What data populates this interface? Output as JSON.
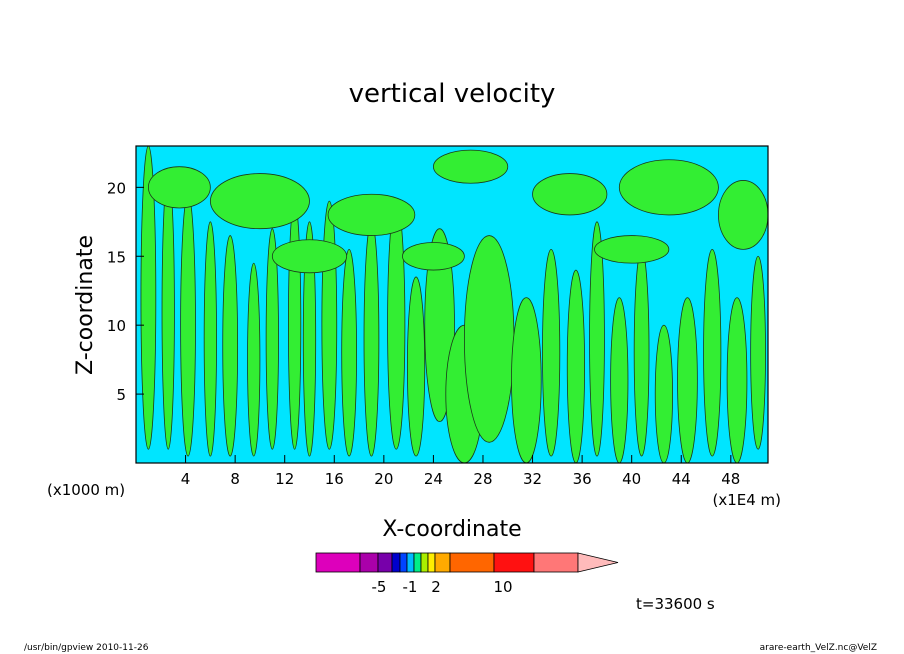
{
  "chart_data": {
    "type": "heatmap",
    "title": "vertical velocity",
    "xlabel": "X-coordinate",
    "ylabel": "Z-coordinate",
    "x_unit_left": "(x1000 m)",
    "x_unit_right": "(x1E4 m)",
    "xlim": [
      0,
      51
    ],
    "ylim": [
      0,
      23
    ],
    "x_ticks": [
      "4",
      "8",
      "12",
      "16",
      "20",
      "24",
      "28",
      "32",
      "36",
      "40",
      "44",
      "48"
    ],
    "y_ticks": [
      "5",
      "10",
      "15",
      "20"
    ],
    "field_colors": {
      "negative": "#00e5ff",
      "positive": "#33ee33",
      "contour_line": "#1a3a1a"
    },
    "positive_regions": [
      {
        "x": 1.0,
        "y": 12.0,
        "rx": 0.6,
        "ry": 11.0
      },
      {
        "x": 2.6,
        "y": 11.0,
        "rx": 0.5,
        "ry": 10.0
      },
      {
        "x": 4.2,
        "y": 10.0,
        "rx": 0.6,
        "ry": 9.5
      },
      {
        "x": 6.0,
        "y": 9.0,
        "rx": 0.5,
        "ry": 8.5
      },
      {
        "x": 7.6,
        "y": 8.5,
        "rx": 0.6,
        "ry": 8.0
      },
      {
        "x": 9.5,
        "y": 7.5,
        "rx": 0.5,
        "ry": 7.0
      },
      {
        "x": 11.0,
        "y": 9.0,
        "rx": 0.5,
        "ry": 8.0
      },
      {
        "x": 12.8,
        "y": 10.0,
        "rx": 0.5,
        "ry": 9.0
      },
      {
        "x": 14.0,
        "y": 9.0,
        "rx": 0.5,
        "ry": 8.5
      },
      {
        "x": 15.6,
        "y": 10.0,
        "rx": 0.6,
        "ry": 9.0
      },
      {
        "x": 17.2,
        "y": 8.0,
        "rx": 0.6,
        "ry": 7.5
      },
      {
        "x": 19.0,
        "y": 9.0,
        "rx": 0.6,
        "ry": 8.5
      },
      {
        "x": 21.0,
        "y": 10.0,
        "rx": 0.7,
        "ry": 9.0
      },
      {
        "x": 22.6,
        "y": 7.0,
        "rx": 0.7,
        "ry": 6.5
      },
      {
        "x": 24.5,
        "y": 10.0,
        "rx": 1.2,
        "ry": 7.0
      },
      {
        "x": 26.5,
        "y": 5.0,
        "rx": 1.5,
        "ry": 5.0
      },
      {
        "x": 28.5,
        "y": 9.0,
        "rx": 2.0,
        "ry": 7.5
      },
      {
        "x": 31.5,
        "y": 6.0,
        "rx": 1.2,
        "ry": 6.0
      },
      {
        "x": 33.5,
        "y": 8.0,
        "rx": 0.7,
        "ry": 7.5
      },
      {
        "x": 35.5,
        "y": 7.0,
        "rx": 0.7,
        "ry": 7.0
      },
      {
        "x": 37.2,
        "y": 9.0,
        "rx": 0.6,
        "ry": 8.5
      },
      {
        "x": 39.0,
        "y": 6.0,
        "rx": 0.7,
        "ry": 6.0
      },
      {
        "x": 40.8,
        "y": 8.0,
        "rx": 0.6,
        "ry": 7.5
      },
      {
        "x": 42.6,
        "y": 5.0,
        "rx": 0.7,
        "ry": 5.0
      },
      {
        "x": 44.5,
        "y": 6.0,
        "rx": 0.8,
        "ry": 6.0
      },
      {
        "x": 46.5,
        "y": 8.0,
        "rx": 0.7,
        "ry": 7.5
      },
      {
        "x": 48.5,
        "y": 6.0,
        "rx": 0.8,
        "ry": 6.0
      },
      {
        "x": 50.2,
        "y": 8.0,
        "rx": 0.6,
        "ry": 7.0
      },
      {
        "x": 3.5,
        "y": 20.0,
        "rx": 2.5,
        "ry": 1.5
      },
      {
        "x": 10.0,
        "y": 19.0,
        "rx": 4.0,
        "ry": 2.0
      },
      {
        "x": 19.0,
        "y": 18.0,
        "rx": 3.5,
        "ry": 1.5
      },
      {
        "x": 27.0,
        "y": 21.5,
        "rx": 3.0,
        "ry": 1.2
      },
      {
        "x": 35.0,
        "y": 19.5,
        "rx": 3.0,
        "ry": 1.5
      },
      {
        "x": 43.0,
        "y": 20.0,
        "rx": 4.0,
        "ry": 2.0
      },
      {
        "x": 49.0,
        "y": 18.0,
        "rx": 2.0,
        "ry": 2.5
      },
      {
        "x": 14.0,
        "y": 15.0,
        "rx": 3.0,
        "ry": 1.2
      },
      {
        "x": 24.0,
        "y": 15.0,
        "rx": 2.5,
        "ry": 1.0
      },
      {
        "x": 40.0,
        "y": 15.5,
        "rx": 3.0,
        "ry": 1.0
      }
    ],
    "colorbar": {
      "colors": [
        "#dd00bb",
        "#aa00aa",
        "#7700aa",
        "#0000cc",
        "#0044ff",
        "#00bbff",
        "#00ee88",
        "#aaee00",
        "#ffee00",
        "#ffaa00",
        "#ff6600",
        "#ff1111",
        "#ff7777",
        "#ffbbbb"
      ],
      "labels": [
        "-5",
        "-1",
        "2",
        "10"
      ]
    },
    "time_label": "t=33600 s"
  },
  "footer": {
    "program": "/usr/bin/gpview  2010-11-26",
    "source": "arare-earth_VelZ.nc@VelZ"
  }
}
